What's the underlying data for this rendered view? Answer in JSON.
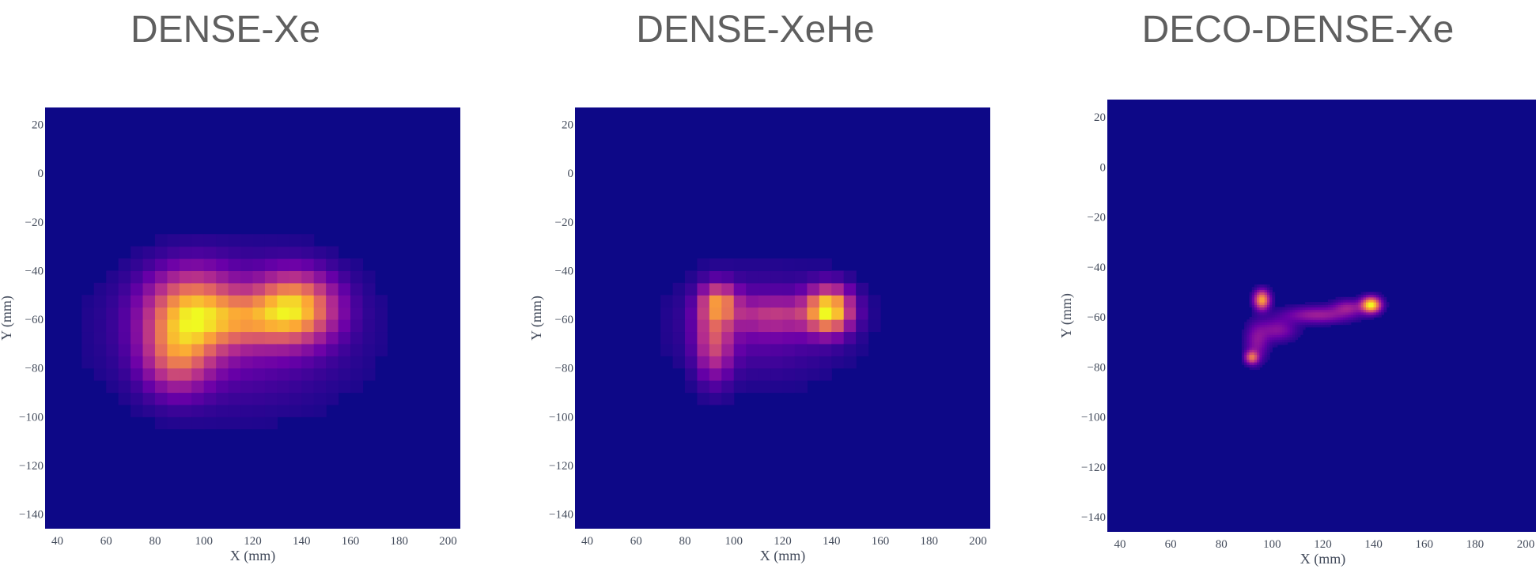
{
  "chart_data": [
    {
      "type": "heatmap",
      "title": "DENSE-Xe",
      "xlabel": "X (mm)",
      "ylabel": "Y (mm)",
      "xlim": [
        35,
        205
      ],
      "ylim": [
        -146,
        27
      ],
      "xticks": [
        40,
        60,
        80,
        100,
        120,
        140,
        160,
        180,
        200
      ],
      "yticks": [
        20,
        0,
        -20,
        -40,
        -60,
        -80,
        -100,
        -120,
        -140
      ],
      "colorscale": [
        "#0d0887",
        "#6a00a8",
        "#b12a90",
        "#e16462",
        "#fca636",
        "#f0f921"
      ],
      "background": "#0d0887",
      "pixelated": true,
      "grid_size_mm": 5,
      "blobs": [
        {
          "x": 95,
          "y": -57,
          "sx": 12,
          "sy": 11,
          "amp": 0.85
        },
        {
          "x": 89,
          "y": -75,
          "sx": 9,
          "sy": 10,
          "amp": 0.55
        },
        {
          "x": 137,
          "y": -55,
          "sx": 11,
          "sy": 9,
          "amp": 0.95
        },
        {
          "x": 117,
          "y": -60,
          "sx": 14,
          "sy": 7,
          "amp": 0.45
        },
        {
          "x": 112,
          "y": -65,
          "sx": 30,
          "sy": 19,
          "amp": 0.22
        }
      ]
    },
    {
      "type": "heatmap",
      "title": "DENSE-XeHe",
      "xlabel": "X (mm)",
      "ylabel": "Y (mm)",
      "xlim": [
        35,
        205
      ],
      "ylim": [
        -146,
        27
      ],
      "xticks": [
        40,
        60,
        80,
        100,
        120,
        140,
        160,
        180,
        200
      ],
      "yticks": [
        20,
        0,
        -20,
        -40,
        -60,
        -80,
        -100,
        -120,
        -140
      ],
      "colorscale": [
        "#0d0887",
        "#6a00a8",
        "#b12a90",
        "#e16462",
        "#fca636",
        "#f0f921"
      ],
      "background": "#0d0887",
      "pixelated": true,
      "grid_size_mm": 5,
      "blobs": [
        {
          "x": 94,
          "y": -53,
          "sx": 5,
          "sy": 5,
          "amp": 0.55
        },
        {
          "x": 92,
          "y": -68,
          "sx": 5,
          "sy": 11,
          "amp": 0.45
        },
        {
          "x": 139,
          "y": -56,
          "sx": 6,
          "sy": 6,
          "amp": 1.0
        },
        {
          "x": 117,
          "y": -58,
          "sx": 13,
          "sy": 5,
          "amp": 0.3
        },
        {
          "x": 112,
          "y": -62,
          "sx": 22,
          "sy": 14,
          "amp": 0.15
        }
      ]
    },
    {
      "type": "heatmap",
      "title": "DECO-DENSE-Xe",
      "xlabel": "X (mm)",
      "ylabel": "Y (mm)",
      "xlim": [
        35,
        205
      ],
      "ylim": [
        -146,
        27
      ],
      "xticks": [
        40,
        60,
        80,
        100,
        120,
        140,
        160,
        180,
        200
      ],
      "yticks": [
        20,
        0,
        -20,
        -40,
        -60,
        -80,
        -100,
        -120,
        -140
      ],
      "colorscale": [
        "#0d0887",
        "#6a00a8",
        "#b12a90",
        "#e16462",
        "#fca636",
        "#f0f921"
      ],
      "background": "#0d0887",
      "pixelated": false,
      "grid_size_mm": 1,
      "blobs": [
        {
          "x": 96,
          "y": -53,
          "sx": 2,
          "sy": 2.5,
          "amp": 0.75
        },
        {
          "x": 139,
          "y": -55,
          "sx": 2.5,
          "sy": 2,
          "amp": 1.0
        },
        {
          "x": 92,
          "y": -76,
          "sx": 1.7,
          "sy": 1.7,
          "amp": 0.55
        },
        {
          "x": 118,
          "y": -59,
          "sx": 9,
          "sy": 2.2,
          "amp": 0.28
        },
        {
          "x": 102,
          "y": -65,
          "sx": 5,
          "sy": 3,
          "amp": 0.22
        },
        {
          "x": 94,
          "y": -70,
          "sx": 3,
          "sy": 5,
          "amp": 0.22
        },
        {
          "x": 130,
          "y": -56,
          "sx": 4,
          "sy": 2,
          "amp": 0.25
        }
      ]
    }
  ]
}
